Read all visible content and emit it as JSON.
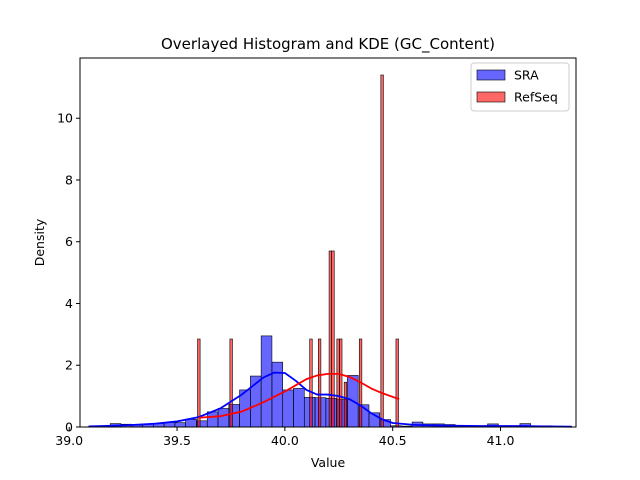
{
  "chart_data": {
    "type": "histogram",
    "title": "Overlayed Histogram and KDE (GC_Content)",
    "xlabel": "Value",
    "ylabel": "Density",
    "xlim": [
      39.05,
      41.35
    ],
    "ylim": [
      0,
      11.95
    ],
    "xticks": [
      "39.0",
      "39.5",
      "40.0",
      "40.5",
      "41.0"
    ],
    "xtick_values": [
      39.0,
      39.5,
      40.0,
      40.5,
      41.0
    ],
    "yticks": [
      "0",
      "2",
      "4",
      "6",
      "8",
      "10"
    ],
    "ytick_values": [
      0,
      2,
      4,
      6,
      8,
      10
    ],
    "grid": false,
    "legend_position": "top-right",
    "series": [
      {
        "name": "SRA",
        "color": "#0000ff",
        "bar_alpha": 0.6,
        "bin_edges": [
          39.09,
          39.14,
          39.19,
          39.24,
          39.29,
          39.34,
          39.39,
          39.44,
          39.49,
          39.54,
          39.59,
          39.64,
          39.69,
          39.74,
          39.79,
          39.84,
          39.89,
          39.94,
          39.99,
          40.04,
          40.09,
          40.14,
          40.19,
          40.24,
          40.29,
          40.34,
          40.39,
          40.44,
          40.49,
          40.54,
          40.59,
          40.64,
          40.69,
          40.74,
          40.79,
          40.84,
          40.89,
          40.94,
          40.99,
          41.04,
          41.09,
          41.14,
          41.19,
          41.24,
          41.29,
          41.33
        ],
        "densities": [
          0.02,
          0.02,
          0.11,
          0.09,
          0.06,
          0.1,
          0.12,
          0.15,
          0.14,
          0.25,
          0.2,
          0.49,
          0.6,
          0.73,
          1.2,
          1.65,
          2.95,
          2.1,
          1.2,
          1.25,
          0.96,
          0.95,
          0.93,
          0.89,
          1.67,
          0.72,
          0.46,
          0.24,
          0.04,
          0.03,
          0.16,
          0.1,
          0.1,
          0.08,
          0.03,
          0.02,
          0.03,
          0.1,
          0.03,
          0.02,
          0.11,
          0.02,
          0.04,
          0.02,
          0.02
        ],
        "kde": {
          "x": [
            39.09,
            39.2,
            39.3,
            39.4,
            39.5,
            39.6,
            39.7,
            39.8,
            39.9,
            39.95,
            40.0,
            40.05,
            40.1,
            40.15,
            40.2,
            40.25,
            40.3,
            40.35,
            40.4,
            40.45,
            40.5,
            40.6,
            40.7,
            40.8,
            40.9,
            41.0,
            41.1,
            41.2,
            41.33
          ],
          "y": [
            0.02,
            0.04,
            0.07,
            0.11,
            0.18,
            0.32,
            0.6,
            1.05,
            1.6,
            1.76,
            1.75,
            1.5,
            1.2,
            1.05,
            1.05,
            1.0,
            0.9,
            0.7,
            0.45,
            0.25,
            0.13,
            0.07,
            0.05,
            0.04,
            0.03,
            0.03,
            0.03,
            0.02,
            0.01
          ]
        }
      },
      {
        "name": "RefSeq",
        "color": "#ff0000",
        "bar_alpha": 0.6,
        "bars": [
          {
            "x0": 39.595,
            "x1": 39.607,
            "density": 2.85
          },
          {
            "x0": 39.745,
            "x1": 39.757,
            "density": 2.85
          },
          {
            "x0": 40.115,
            "x1": 40.127,
            "density": 2.85
          },
          {
            "x0": 40.155,
            "x1": 40.167,
            "density": 2.85
          },
          {
            "x0": 40.205,
            "x1": 40.217,
            "density": 5.7
          },
          {
            "x0": 40.217,
            "x1": 40.229,
            "density": 5.7
          },
          {
            "x0": 40.241,
            "x1": 40.253,
            "density": 2.85
          },
          {
            "x0": 40.253,
            "x1": 40.265,
            "density": 2.85
          },
          {
            "x0": 40.275,
            "x1": 40.287,
            "density": 1.45
          },
          {
            "x0": 40.345,
            "x1": 40.357,
            "density": 2.85
          },
          {
            "x0": 40.445,
            "x1": 40.457,
            "density": 11.4
          },
          {
            "x0": 40.515,
            "x1": 40.527,
            "density": 2.85
          }
        ],
        "kde": {
          "x": [
            39.6,
            39.7,
            39.8,
            39.9,
            40.0,
            40.05,
            40.1,
            40.15,
            40.2,
            40.25,
            40.3,
            40.35,
            40.4,
            40.45,
            40.53
          ],
          "y": [
            0.3,
            0.35,
            0.5,
            0.8,
            1.15,
            1.35,
            1.55,
            1.67,
            1.72,
            1.72,
            1.62,
            1.45,
            1.25,
            1.1,
            0.9
          ]
        }
      }
    ]
  }
}
